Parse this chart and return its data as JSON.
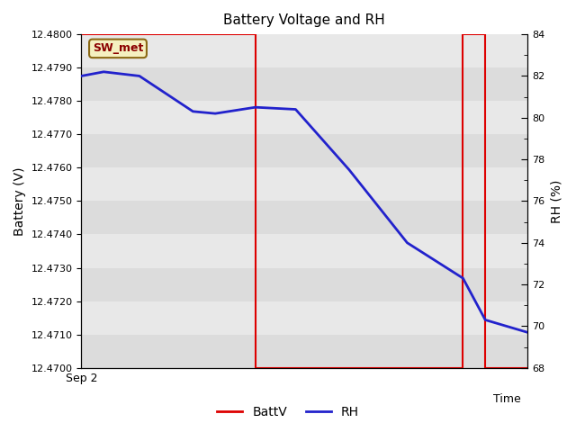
{
  "title": "Battery Voltage and RH",
  "ylabel_left": "Battery (V)",
  "ylabel_right": "RH (%)",
  "x_label_left": "Sep 2",
  "x_label_right": "Time",
  "annotation": "SW_met",
  "batt_color": "#dd0000",
  "rh_color": "#2222cc",
  "ylim_left": [
    12.47,
    12.48
  ],
  "ylim_right": [
    68,
    84
  ],
  "yticks_left": [
    12.47,
    12.471,
    12.472,
    12.473,
    12.474,
    12.475,
    12.476,
    12.477,
    12.478,
    12.479,
    12.48
  ],
  "yticks_right_major": [
    68,
    70,
    72,
    74,
    76,
    78,
    80,
    82,
    84
  ],
  "yticks_right_minor": [
    69,
    71,
    73,
    75,
    77,
    79,
    81,
    83
  ],
  "bg_colors": [
    "#dcdcdc",
    "#e8e8e8"
  ],
  "batt_x": [
    0.0,
    0.39,
    0.39,
    0.855,
    0.855,
    0.905,
    0.905,
    1.0
  ],
  "batt_y": [
    12.48,
    12.48,
    12.47,
    12.47,
    12.48,
    12.48,
    12.47,
    12.47
  ],
  "rh_x": [
    0.0,
    0.05,
    0.13,
    0.25,
    0.3,
    0.39,
    0.48,
    0.6,
    0.73,
    0.855,
    0.905,
    1.0
  ],
  "rh_y": [
    82.0,
    82.2,
    82.0,
    80.3,
    80.2,
    80.5,
    80.4,
    77.5,
    74.0,
    72.3,
    70.3,
    69.7
  ]
}
